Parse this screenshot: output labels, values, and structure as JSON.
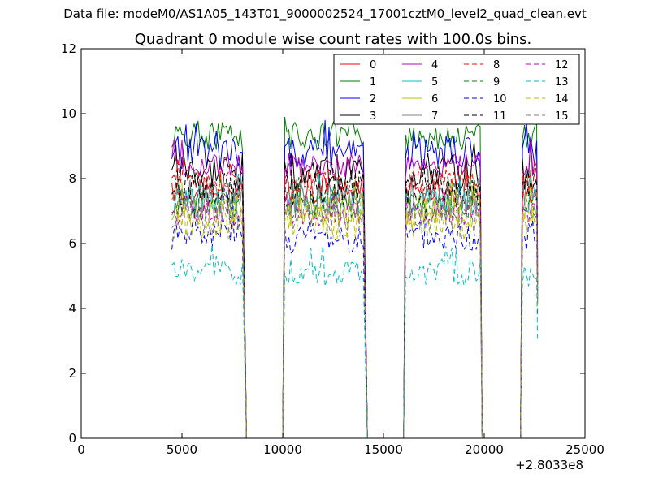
{
  "suptitle": "Data file: modeM0/AS1A05_143T01_9000002524_17001cztM0_level2_quad_clean.evt",
  "chart_data": {
    "type": "line",
    "title": "Quadrant 0 module wise count rates with 100.0s bins.",
    "xlabel": "",
    "ylabel": "",
    "xlim": [
      0,
      25000
    ],
    "ylim": [
      0,
      12
    ],
    "x_ticks": [
      0,
      5000,
      10000,
      15000,
      20000,
      25000
    ],
    "x_tick_labels": [
      "0",
      "5000",
      "10000",
      "15000",
      "20000",
      "25000"
    ],
    "y_ticks": [
      0,
      2,
      4,
      6,
      8,
      10,
      12
    ],
    "y_tick_labels": [
      "0",
      "2",
      "4",
      "6",
      "8",
      "10",
      "12"
    ],
    "x_offset_label": "+2.8033e8",
    "grid": false,
    "legend_position": "top-right",
    "legend_columns": 4,
    "segments": [
      [
        4500,
        8000
      ],
      [
        10100,
        14000
      ],
      [
        16100,
        19800
      ],
      [
        21900,
        22600
      ]
    ],
    "segment_fall_end": [
      8200,
      10000,
      14200,
      16000,
      19900,
      21800
    ],
    "series": [
      {
        "name": "0",
        "level": 7.6,
        "color": "#ff0000",
        "dash": "solid"
      },
      {
        "name": "1",
        "level": 9.3,
        "color": "#008000",
        "dash": "solid"
      },
      {
        "name": "2",
        "level": 8.8,
        "color": "#0000ff",
        "dash": "solid"
      },
      {
        "name": "3",
        "level": 8.2,
        "color": "#000000",
        "dash": "solid"
      },
      {
        "name": "4",
        "level": 8.4,
        "color": "#bf00bf",
        "dash": "solid"
      },
      {
        "name": "5",
        "level": 7.3,
        "color": "#00bfbf",
        "dash": "solid"
      },
      {
        "name": "6",
        "level": 7.0,
        "color": "#bfbf00",
        "dash": "solid"
      },
      {
        "name": "7",
        "level": 7.4,
        "color": "#808080",
        "dash": "solid"
      },
      {
        "name": "8",
        "level": 7.9,
        "color": "#ff0000",
        "dash": "dashed"
      },
      {
        "name": "9",
        "level": 7.2,
        "color": "#008000",
        "dash": "dashed"
      },
      {
        "name": "10",
        "level": 6.2,
        "color": "#0000ff",
        "dash": "dashed"
      },
      {
        "name": "11",
        "level": 7.7,
        "color": "#000000",
        "dash": "dashed"
      },
      {
        "name": "12",
        "level": 6.9,
        "color": "#bf00bf",
        "dash": "dashed"
      },
      {
        "name": "13",
        "level": 5.1,
        "color": "#00bfbf",
        "dash": "dashed"
      },
      {
        "name": "14",
        "level": 6.6,
        "color": "#bfbf00",
        "dash": "dashed"
      },
      {
        "name": "15",
        "level": 6.8,
        "color": "#808080",
        "dash": "dashed"
      }
    ]
  }
}
